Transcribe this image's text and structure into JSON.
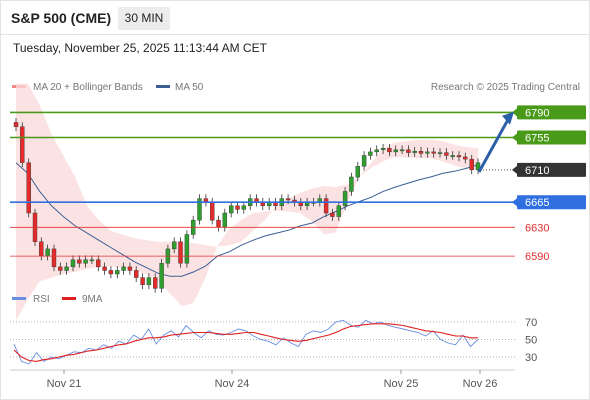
{
  "header": {
    "title": "S&P 500 (CME)",
    "interval": "30 MIN",
    "datetime": "Tuesday, November 25, 2025 11:13:44 AM CET"
  },
  "legend": {
    "ma20": "MA 20 + Bollinger Bands",
    "ma50": "MA 50",
    "credit": "Research © 2025 Trading Central",
    "rsi": "RSI",
    "ma9": "9MA"
  },
  "colors": {
    "green": "#4a9a1a",
    "blue": "#2f6fe0",
    "red": "#e03030",
    "dark": "#333333",
    "arrow": "#2c5fa8",
    "band": "#fbd9d9",
    "ma50": "#3b5f95",
    "up": "#2e9e2e",
    "down": "#e32b2b",
    "rsi": "#6a8ee0",
    "rsi_ma": "#e02020"
  },
  "chart_data": [
    {
      "type": "candlestick",
      "x": [
        "Nov 21",
        "Nov 24",
        "Nov 25",
        "Nov 26"
      ],
      "y_range": [
        6540,
        6810
      ],
      "levels": [
        {
          "value": 6790,
          "label": "6790",
          "kind": "resistance",
          "color": "green"
        },
        {
          "value": 6755,
          "label": "6755",
          "kind": "resistance",
          "color": "green"
        },
        {
          "value": 6710,
          "label": "6710",
          "kind": "current",
          "color": "dark"
        },
        {
          "value": 6665,
          "label": "6665",
          "kind": "pivot",
          "color": "blue"
        },
        {
          "value": 6630,
          "label": "6630",
          "kind": "support",
          "color": "red"
        },
        {
          "value": 6590,
          "label": "6590",
          "kind": "support",
          "color": "red"
        }
      ],
      "close_points": [
        6770,
        6720,
        6650,
        6610,
        6590,
        6600,
        6575,
        6570,
        6575,
        6585,
        6580,
        6585,
        6585,
        6575,
        6570,
        6565,
        6570,
        6575,
        6570,
        6560,
        6550,
        6560,
        6545,
        6580,
        6600,
        6610,
        6580,
        6620,
        6640,
        6670,
        6665,
        6640,
        6630,
        6650,
        6660,
        6655,
        6660,
        6670,
        6665,
        6660,
        6665,
        6660,
        6670,
        6668,
        6665,
        6660,
        6665,
        6665,
        6670,
        6650,
        6645,
        6660,
        6680,
        6700,
        6715,
        6730,
        6735,
        6738,
        6740,
        6735,
        6738,
        6738,
        6734,
        6736,
        6733,
        6735,
        6733,
        6734,
        6730,
        6730,
        6728,
        6725,
        6710,
        6720
      ],
      "bollinger_upper": [
        6830,
        6830,
        6800,
        6760,
        6730,
        6700,
        6660,
        6640,
        6625,
        6620,
        6615,
        6612,
        6610,
        6610,
        6610,
        6608,
        6605,
        6603,
        6605,
        6610,
        6625,
        6640,
        6660,
        6670,
        6678,
        6684,
        6688,
        6686,
        6690,
        6700,
        6720,
        6740,
        6748,
        6750,
        6752,
        6752,
        6750,
        6745,
        6742,
        6740
      ],
      "bollinger_lower": [
        6500,
        6530,
        6555,
        6560,
        6565,
        6568,
        6572,
        6575,
        6576,
        6574,
        6570,
        6565,
        6555,
        6538,
        6520,
        6525,
        6560,
        6604,
        6628,
        6640,
        6650,
        6652,
        6653,
        6652,
        6650,
        6638,
        6620,
        6623,
        6666,
        6700,
        6713,
        6722,
        6728,
        6727,
        6726,
        6726,
        6722,
        6716,
        6712,
        6710
      ],
      "ma50": [
        6720,
        6705,
        6680,
        6660,
        6645,
        6632,
        6622,
        6612,
        6602,
        6592,
        6582,
        6574,
        6566,
        6562,
        6562,
        6568,
        6576,
        6590,
        6596,
        6605,
        6612,
        6618,
        6622,
        6626,
        6632,
        6636,
        6645,
        6652,
        6660,
        6666,
        6672,
        6680,
        6686,
        6691,
        6696,
        6700,
        6705,
        6708,
        6712,
        6717
      ]
    },
    {
      "type": "line",
      "title": "RSI",
      "y_ticks": [
        70,
        50,
        30
      ],
      "series": [
        {
          "name": "RSI",
          "values": [
            45,
            25,
            22,
            35,
            25,
            30,
            28,
            32,
            36,
            35,
            40,
            38,
            44,
            40,
            48,
            45,
            55,
            50,
            62,
            45,
            55,
            60,
            53,
            66,
            58,
            52,
            60,
            56,
            55,
            58,
            62,
            60,
            54,
            50,
            48,
            44,
            52,
            46,
            42,
            56,
            60,
            58,
            62,
            70,
            72,
            66,
            64,
            72,
            68,
            70,
            66,
            64,
            62,
            60,
            58,
            54,
            60,
            50,
            46,
            44,
            55,
            42,
            50
          ]
        },
        {
          "name": "9MA",
          "values": [
            38,
            30,
            26,
            25,
            27,
            28,
            30,
            32,
            33,
            35,
            37,
            38,
            40,
            42,
            44,
            45,
            48,
            50,
            52,
            52,
            53,
            55,
            56,
            57,
            58,
            58,
            58,
            57,
            56,
            56,
            57,
            58,
            58,
            56,
            54,
            52,
            50,
            49,
            48,
            49,
            51,
            53,
            55,
            58,
            62,
            65,
            66,
            67,
            68,
            68,
            68,
            67,
            66,
            64,
            62,
            60,
            59,
            58,
            56,
            54,
            54,
            52,
            52
          ]
        }
      ]
    }
  ]
}
